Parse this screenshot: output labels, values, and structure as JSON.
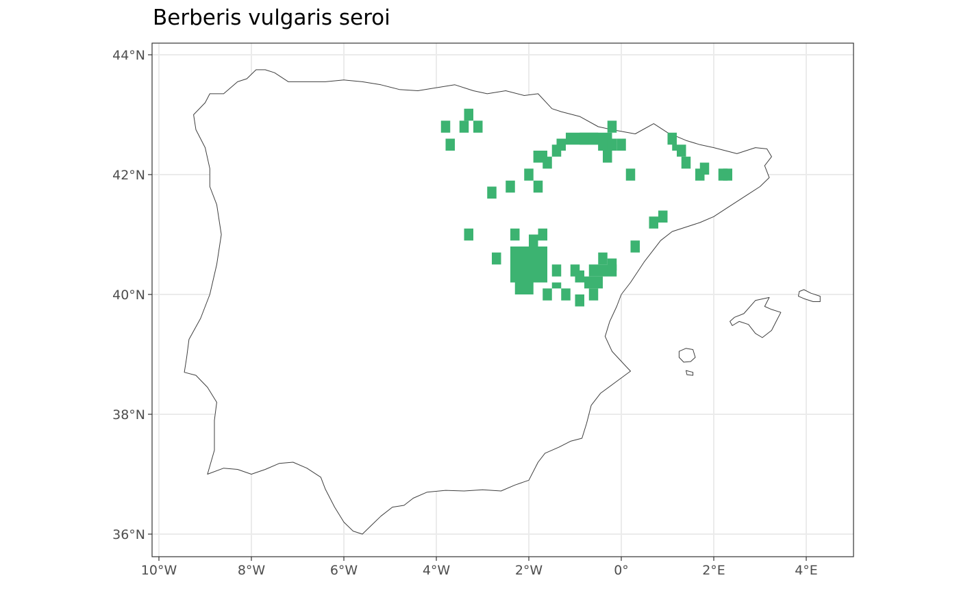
{
  "title": "Berberis vulgaris seroi",
  "map": {
    "region": "Iberian Peninsula and Balearic Islands",
    "projection": "longitude / latitude",
    "x_range_deg": [
      -10.2,
      5.0
    ],
    "y_range_deg": [
      35.8,
      44.2
    ],
    "panel_background": "#ffffff",
    "panel_border": "#333333",
    "grid_color": "#ebebeb",
    "coastline_color": "#3d3d3d",
    "occurrence_color": "#3cb371",
    "cell_size_deg": 0.2
  },
  "axes": {
    "x_ticks": [
      {
        "value": -10,
        "label": "10°W"
      },
      {
        "value": -8,
        "label": "8°W"
      },
      {
        "value": -6,
        "label": "6°W"
      },
      {
        "value": -4,
        "label": "4°W"
      },
      {
        "value": -2,
        "label": "2°W"
      },
      {
        "value": 0,
        "label": "0°"
      },
      {
        "value": 2,
        "label": "2°E"
      },
      {
        "value": 4,
        "label": "4°E"
      }
    ],
    "y_ticks": [
      {
        "value": 36,
        "label": "36°N"
      },
      {
        "value": 38,
        "label": "38°N"
      },
      {
        "value": 40,
        "label": "40°N"
      },
      {
        "value": 42,
        "label": "42°N"
      },
      {
        "value": 44,
        "label": "44°N"
      }
    ]
  },
  "coastlines": {
    "mainland": [
      [
        -8.9,
        43.35
      ],
      [
        -8.6,
        43.35
      ],
      [
        -8.3,
        43.55
      ],
      [
        -8.1,
        43.6
      ],
      [
        -7.9,
        43.75
      ],
      [
        -7.7,
        43.75
      ],
      [
        -7.5,
        43.7
      ],
      [
        -7.2,
        43.55
      ],
      [
        -6.8,
        43.55
      ],
      [
        -6.4,
        43.55
      ],
      [
        -6.0,
        43.58
      ],
      [
        -5.6,
        43.55
      ],
      [
        -5.2,
        43.5
      ],
      [
        -4.8,
        43.42
      ],
      [
        -4.4,
        43.4
      ],
      [
        -4.0,
        43.45
      ],
      [
        -3.6,
        43.5
      ],
      [
        -3.2,
        43.4
      ],
      [
        -2.9,
        43.35
      ],
      [
        -2.5,
        43.4
      ],
      [
        -2.1,
        43.32
      ],
      [
        -1.8,
        43.35
      ],
      [
        -1.5,
        43.1
      ],
      [
        -1.3,
        43.05
      ],
      [
        -0.9,
        42.97
      ],
      [
        -0.5,
        42.8
      ],
      [
        -0.2,
        42.75
      ],
      [
        0.3,
        42.68
      ],
      [
        0.7,
        42.85
      ],
      [
        1.0,
        42.7
      ],
      [
        1.4,
        42.57
      ],
      [
        1.7,
        42.5
      ],
      [
        2.0,
        42.45
      ],
      [
        2.5,
        42.35
      ],
      [
        2.9,
        42.45
      ],
      [
        3.15,
        42.43
      ],
      [
        3.25,
        42.3
      ],
      [
        3.1,
        42.15
      ],
      [
        3.2,
        41.95
      ],
      [
        3.0,
        41.8
      ],
      [
        2.7,
        41.65
      ],
      [
        2.3,
        41.45
      ],
      [
        2.0,
        41.3
      ],
      [
        1.7,
        41.2
      ],
      [
        1.1,
        41.05
      ],
      [
        0.85,
        40.9
      ],
      [
        0.7,
        40.75
      ],
      [
        0.5,
        40.55
      ],
      [
        0.2,
        40.2
      ],
      [
        0.0,
        40.0
      ],
      [
        -0.1,
        39.8
      ],
      [
        -0.25,
        39.55
      ],
      [
        -0.35,
        39.3
      ],
      [
        -0.2,
        39.05
      ],
      [
        0.1,
        38.8
      ],
      [
        0.2,
        38.72
      ],
      [
        -0.1,
        38.55
      ],
      [
        -0.45,
        38.35
      ],
      [
        -0.65,
        38.15
      ],
      [
        -0.75,
        37.85
      ],
      [
        -0.85,
        37.6
      ],
      [
        -1.1,
        37.55
      ],
      [
        -1.35,
        37.45
      ],
      [
        -1.65,
        37.35
      ],
      [
        -1.8,
        37.2
      ],
      [
        -2.0,
        36.9
      ],
      [
        -2.3,
        36.82
      ],
      [
        -2.6,
        36.72
      ],
      [
        -3.0,
        36.74
      ],
      [
        -3.4,
        36.72
      ],
      [
        -3.8,
        36.73
      ],
      [
        -4.2,
        36.7
      ],
      [
        -4.5,
        36.6
      ],
      [
        -4.7,
        36.48
      ],
      [
        -4.95,
        36.45
      ],
      [
        -5.2,
        36.3
      ],
      [
        -5.4,
        36.15
      ],
      [
        -5.6,
        36.0
      ],
      [
        -5.8,
        36.05
      ],
      [
        -6.0,
        36.2
      ],
      [
        -6.2,
        36.45
      ],
      [
        -6.4,
        36.75
      ],
      [
        -6.5,
        36.95
      ],
      [
        -6.8,
        37.1
      ],
      [
        -7.1,
        37.2
      ],
      [
        -7.4,
        37.18
      ],
      [
        -7.7,
        37.08
      ],
      [
        -8.0,
        37.0
      ],
      [
        -8.3,
        37.08
      ],
      [
        -8.6,
        37.1
      ],
      [
        -8.95,
        37.0
      ],
      [
        -8.8,
        37.4
      ],
      [
        -8.8,
        37.9
      ],
      [
        -8.75,
        38.2
      ],
      [
        -8.95,
        38.45
      ],
      [
        -9.2,
        38.65
      ],
      [
        -9.45,
        38.7
      ],
      [
        -9.4,
        38.95
      ],
      [
        -9.35,
        39.25
      ],
      [
        -9.1,
        39.6
      ],
      [
        -8.9,
        40.0
      ],
      [
        -8.75,
        40.5
      ],
      [
        -8.65,
        41.0
      ],
      [
        -8.75,
        41.5
      ],
      [
        -8.9,
        41.8
      ],
      [
        -8.9,
        42.1
      ],
      [
        -9.0,
        42.45
      ],
      [
        -9.2,
        42.75
      ],
      [
        -9.25,
        43.0
      ],
      [
        -9.0,
        43.2
      ],
      [
        -8.9,
        43.35
      ]
    ],
    "mallorca": [
      [
        2.35,
        39.55
      ],
      [
        2.45,
        39.62
      ],
      [
        2.65,
        39.68
      ],
      [
        2.9,
        39.9
      ],
      [
        3.2,
        39.95
      ],
      [
        3.1,
        39.8
      ],
      [
        3.25,
        39.75
      ],
      [
        3.45,
        39.7
      ],
      [
        3.35,
        39.55
      ],
      [
        3.25,
        39.4
      ],
      [
        3.05,
        39.28
      ],
      [
        2.9,
        39.35
      ],
      [
        2.75,
        39.5
      ],
      [
        2.55,
        39.55
      ],
      [
        2.4,
        39.48
      ],
      [
        2.35,
        39.55
      ]
    ],
    "menorca": [
      [
        3.85,
        40.05
      ],
      [
        3.95,
        40.08
      ],
      [
        4.1,
        40.02
      ],
      [
        4.3,
        39.97
      ],
      [
        4.3,
        39.88
      ],
      [
        4.15,
        39.88
      ],
      [
        3.95,
        39.93
      ],
      [
        3.83,
        39.97
      ],
      [
        3.85,
        40.05
      ]
    ],
    "ibiza": [
      [
        1.25,
        39.05
      ],
      [
        1.4,
        39.1
      ],
      [
        1.55,
        39.08
      ],
      [
        1.6,
        38.95
      ],
      [
        1.5,
        38.88
      ],
      [
        1.35,
        38.87
      ],
      [
        1.25,
        38.95
      ],
      [
        1.25,
        39.05
      ]
    ],
    "formentera": [
      [
        1.4,
        38.73
      ],
      [
        1.55,
        38.7
      ],
      [
        1.55,
        38.65
      ],
      [
        1.42,
        38.66
      ],
      [
        1.4,
        38.73
      ]
    ]
  },
  "occurrences": [
    [
      -3.8,
      42.8
    ],
    [
      -3.4,
      42.8
    ],
    [
      -3.1,
      42.8
    ],
    [
      -3.3,
      43.0
    ],
    [
      -3.7,
      42.5
    ],
    [
      -3.3,
      41.0
    ],
    [
      -2.8,
      41.7
    ],
    [
      -2.4,
      41.8
    ],
    [
      -2.0,
      42.0
    ],
    [
      -1.8,
      41.8
    ],
    [
      -2.3,
      41.0
    ],
    [
      -2.7,
      40.6
    ],
    [
      -1.7,
      41.0
    ],
    [
      -1.4,
      40.4
    ],
    [
      -1.0,
      40.4
    ],
    [
      -0.7,
      40.2
    ],
    [
      -1.2,
      40.0
    ],
    [
      -0.9,
      39.9
    ],
    [
      -0.6,
      40.0
    ],
    [
      -1.6,
      40.0
    ],
    [
      -0.9,
      40.3
    ],
    [
      -1.8,
      42.3
    ],
    [
      -1.6,
      42.2
    ],
    [
      -1.4,
      42.4
    ],
    [
      -1.3,
      42.5
    ],
    [
      -1.1,
      42.6
    ],
    [
      -0.8,
      42.6
    ],
    [
      -0.6,
      42.6
    ],
    [
      -0.4,
      42.5
    ],
    [
      -0.2,
      42.8
    ],
    [
      -0.3,
      42.3
    ],
    [
      0.0,
      42.5
    ],
    [
      0.2,
      42.0
    ],
    [
      -0.4,
      40.6
    ],
    [
      -0.2,
      40.5
    ],
    [
      -0.5,
      40.2
    ],
    [
      0.7,
      41.2
    ],
    [
      0.9,
      41.3
    ],
    [
      0.3,
      40.8
    ],
    [
      1.1,
      42.6
    ],
    [
      1.3,
      42.4
    ],
    [
      1.4,
      42.2
    ],
    [
      1.8,
      42.1
    ],
    [
      1.7,
      42.0
    ],
    [
      2.2,
      42.0
    ],
    [
      2.3,
      42.0
    ]
  ],
  "occurrence_blocks": [
    {
      "lon": [
        -2.4,
        -1.6
      ],
      "lat": [
        40.2,
        40.8
      ]
    },
    {
      "lon": [
        -2.0,
        -1.8
      ],
      "lat": [
        40.8,
        41.0
      ]
    },
    {
      "lon": [
        -2.3,
        -1.9
      ],
      "lat": [
        40.0,
        40.2
      ]
    },
    {
      "lon": [
        -1.5,
        -1.3
      ],
      "lat": [
        40.1,
        40.2
      ]
    },
    {
      "lon": [
        -1.9,
        -1.6
      ],
      "lat": [
        42.2,
        42.4
      ]
    },
    {
      "lon": [
        -1.0,
        -0.2
      ],
      "lat": [
        42.5,
        42.7
      ]
    },
    {
      "lon": [
        -0.5,
        -0.1
      ],
      "lat": [
        42.4,
        42.6
      ]
    },
    {
      "lon": [
        -0.7,
        -0.1
      ],
      "lat": [
        40.3,
        40.5
      ]
    },
    {
      "lon": [
        1.1,
        1.2
      ],
      "lat": [
        42.4,
        42.6
      ]
    }
  ]
}
